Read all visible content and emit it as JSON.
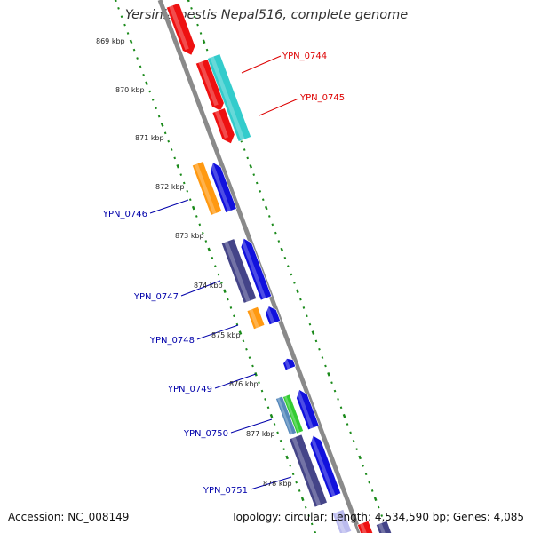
{
  "title": "Yersinia pestis Nepal516, complete genome",
  "footer": {
    "accession": "Accession: NC_008149",
    "summary": "Topology: circular; Length: 4,534,590 bp; Genes: 4,085"
  },
  "colors": {
    "backbone": "#8a8a8a",
    "ruler_dots": "#1a8a1a",
    "label_forward": "#dd0000",
    "label_reverse": "#0000aa",
    "red": "#ee1111",
    "cyan": "#33cccc",
    "blue": "#1111dd",
    "orange": "#ff9911",
    "slate": "#444488",
    "green": "#33cc33",
    "steel": "#5588bb",
    "pale": "#bbbbee"
  },
  "diagram": {
    "kbp_ticks": [
      {
        "label": "869 kbp"
      },
      {
        "label": "870 kbp"
      },
      {
        "label": "871 kbp"
      },
      {
        "label": "872 kbp"
      },
      {
        "label": "873 kbp"
      },
      {
        "label": "874 kbp"
      },
      {
        "label": "875 kbp"
      },
      {
        "label": "876 kbp"
      },
      {
        "label": "877 kbp"
      },
      {
        "label": "878 kbp"
      }
    ],
    "gene_labels": [
      {
        "text": "YPN_0744",
        "side": "right"
      },
      {
        "text": "YPN_0745",
        "side": "right"
      },
      {
        "text": "YPN_0746",
        "side": "left"
      },
      {
        "text": "YPN_0747",
        "side": "left"
      },
      {
        "text": "YPN_0748",
        "side": "left"
      },
      {
        "text": "YPN_0749",
        "side": "left"
      },
      {
        "text": "YPN_0750",
        "side": "left"
      },
      {
        "text": "YPN_0751",
        "side": "left"
      }
    ]
  }
}
